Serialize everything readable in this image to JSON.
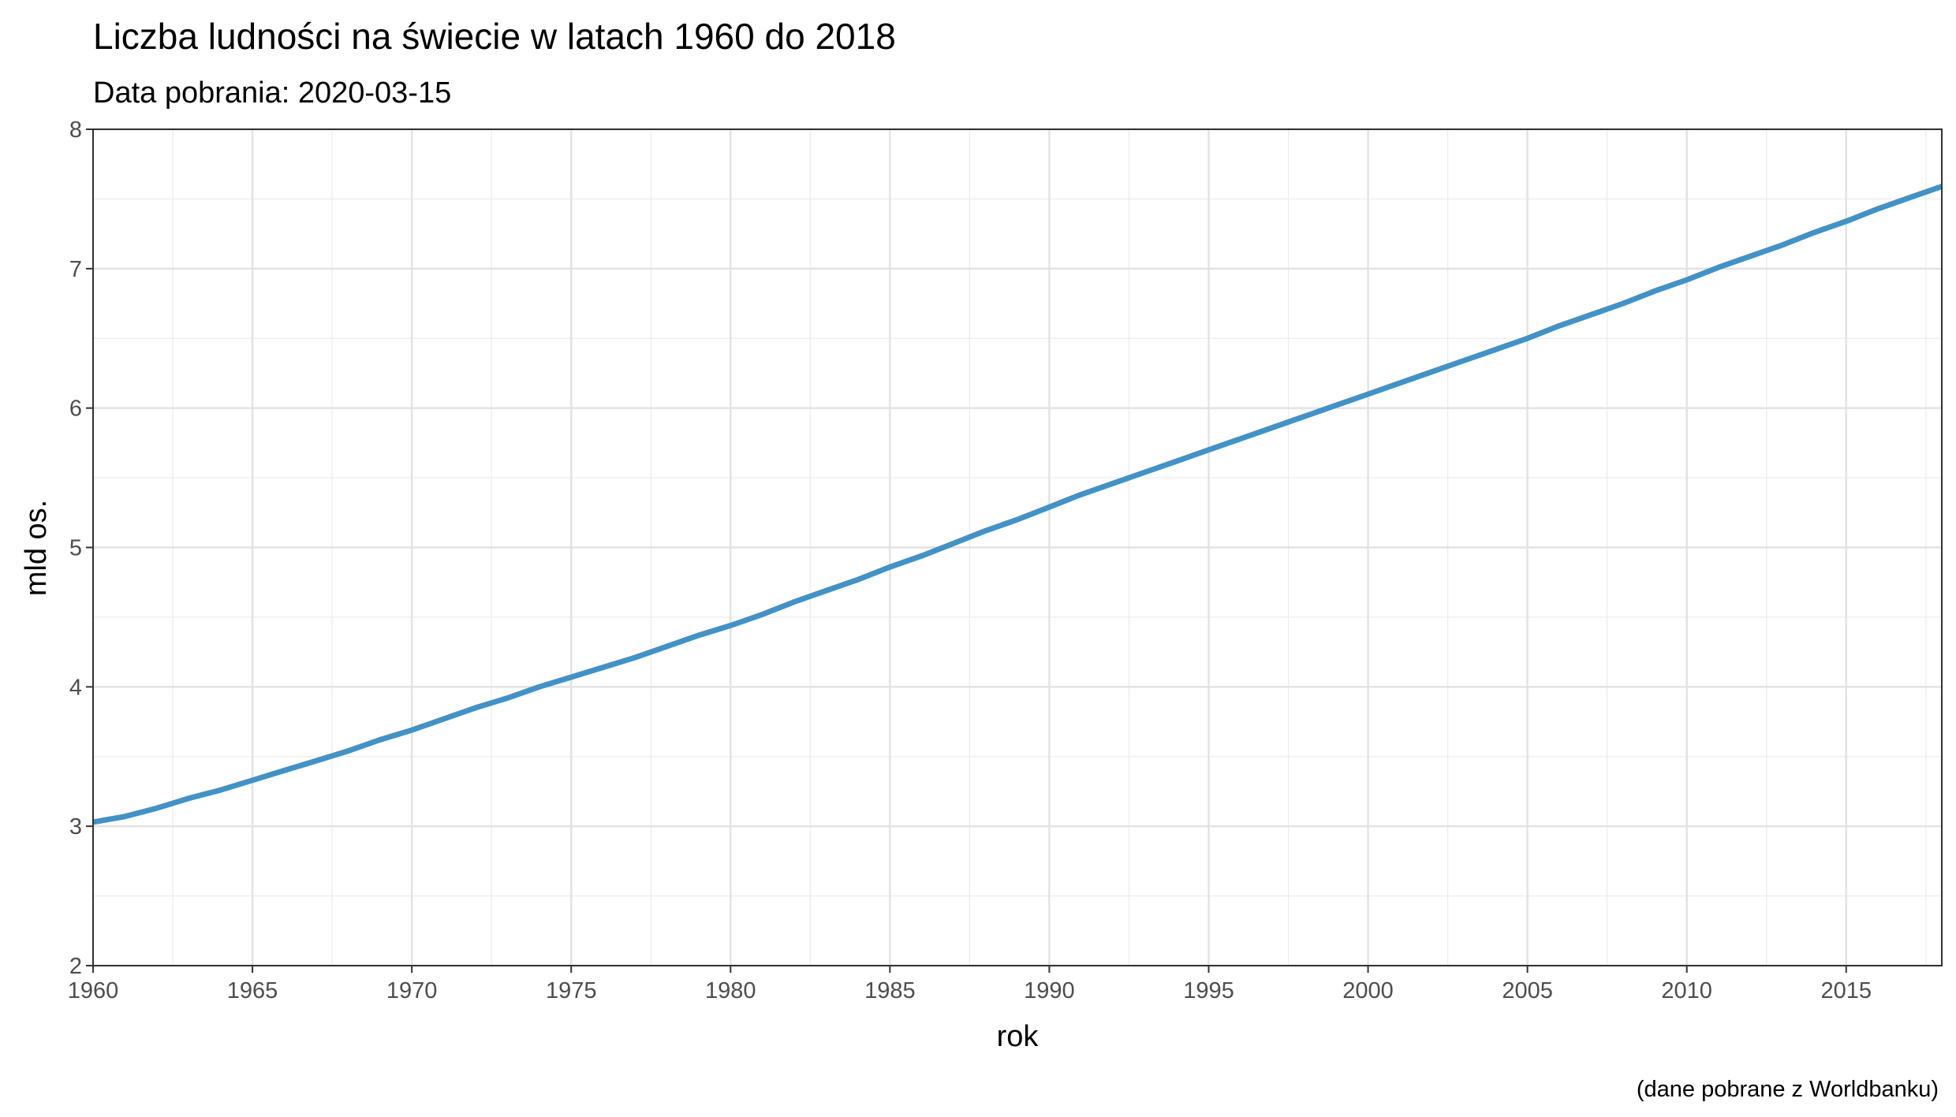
{
  "chart_data": {
    "type": "line",
    "title": "Liczba ludności na świecie w latach 1960 do 2018",
    "subtitle": "Data pobrania: 2020-03-15",
    "xlabel": "rok",
    "ylabel": "mld os.",
    "caption": "(dane pobrane z Worldbanku)",
    "xlim": [
      1960,
      2018
    ],
    "ylim": [
      2,
      8
    ],
    "x_ticks": [
      "1960",
      "1965",
      "1970",
      "1975",
      "1980",
      "1985",
      "1990",
      "1995",
      "2000",
      "2005",
      "2010",
      "2015"
    ],
    "y_ticks": [
      "2",
      "3",
      "4",
      "5",
      "6",
      "7",
      "8"
    ],
    "grid": true,
    "line_color": "#4292c6",
    "series": [
      {
        "x": [
          1960,
          1961,
          1962,
          1963,
          1964,
          1965,
          1966,
          1967,
          1968,
          1969,
          1970,
          1971,
          1972,
          1973,
          1974,
          1975,
          1976,
          1977,
          1978,
          1979,
          1980,
          1981,
          1982,
          1983,
          1984,
          1985,
          1986,
          1987,
          1988,
          1989,
          1990,
          1991,
          1992,
          1993,
          1994,
          1995,
          1996,
          1997,
          1998,
          1999,
          2000,
          2001,
          2002,
          2003,
          2004,
          2005,
          2006,
          2007,
          2008,
          2009,
          2010,
          2011,
          2012,
          2013,
          2014,
          2015,
          2016,
          2017,
          2018
        ],
        "values": [
          3.03,
          3.07,
          3.13,
          3.2,
          3.26,
          3.33,
          3.4,
          3.47,
          3.54,
          3.62,
          3.69,
          3.77,
          3.85,
          3.92,
          4.0,
          4.07,
          4.14,
          4.21,
          4.29,
          4.37,
          4.44,
          4.52,
          4.61,
          4.69,
          4.77,
          4.86,
          4.94,
          5.03,
          5.12,
          5.2,
          5.29,
          5.38,
          5.46,
          5.54,
          5.62,
          5.7,
          5.78,
          5.86,
          5.94,
          6.02,
          6.1,
          6.18,
          6.26,
          6.34,
          6.42,
          6.5,
          6.59,
          6.67,
          6.75,
          6.84,
          6.92,
          7.01,
          7.09,
          7.17,
          7.26,
          7.34,
          7.43,
          7.51,
          7.59
        ]
      }
    ]
  }
}
